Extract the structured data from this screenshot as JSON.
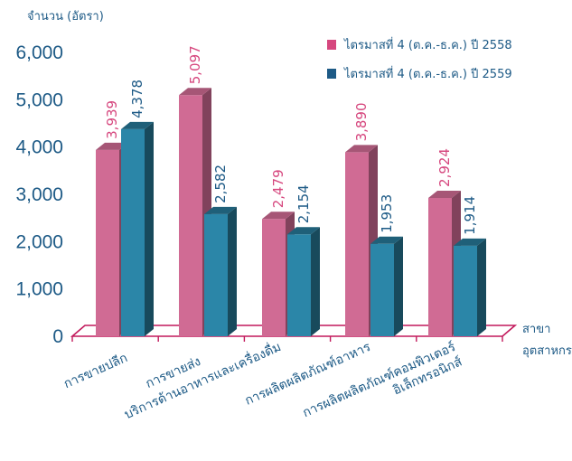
{
  "chart_data": {
    "type": "bar",
    "ylabel": "จำนวน (อัตรา)",
    "xlabel": [
      "สาขา",
      "อุตสาหกรรม"
    ],
    "ylim": [
      0,
      6000
    ],
    "yticks": [
      0,
      1000,
      2000,
      3000,
      4000,
      5000,
      6000
    ],
    "ytick_labels": [
      "0",
      "1,000",
      "2,000",
      "3,000",
      "4,000",
      "5,000",
      "6,000"
    ],
    "categories": [
      [
        "การขายปลีก"
      ],
      [
        "การขายส่ง"
      ],
      [
        "บริการด้านอาหารและเครื่องดื่ม"
      ],
      [
        "การผลิตผลิตภัณฑ์อาหาร"
      ],
      [
        "การผลิตผลิตภัณฑ์คอมพิวเตอร์",
        "อิเล็กทรอนิกส์"
      ]
    ],
    "series": [
      {
        "name": "ไตรมาสที่ 4 (ต.ค.-ธ.ค.) ปี 2558",
        "values": [
          3939,
          5097,
          2479,
          3890,
          2924
        ],
        "labels": [
          "3,939",
          "5,097",
          "2,479",
          "3,890",
          "2,924"
        ]
      },
      {
        "name": "ไตรมาสที่ 4 (ต.ค.-ธ.ค.) ปี 2559",
        "values": [
          4378,
          2582,
          2154,
          1953,
          1914
        ],
        "labels": [
          "4,378",
          "2,582",
          "2,154",
          "1,953",
          "1,914"
        ]
      }
    ],
    "legend_position": "top-right",
    "grid": false,
    "style": "3d"
  },
  "colors": {
    "series_1": "#d06b94",
    "series_2": "#2b86a8",
    "series_1_label": "#d6477e",
    "series_2_label": "#1d5a86",
    "axis_text": "#1d5a86",
    "floor": "#c2185b"
  }
}
